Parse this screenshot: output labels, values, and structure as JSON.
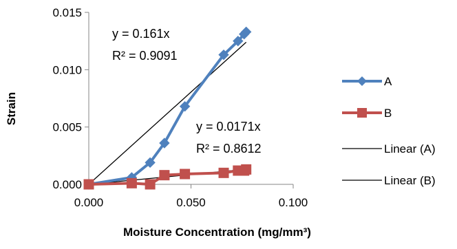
{
  "chart_data": {
    "type": "scatter",
    "xlabel": "Moisture Concentration (mg/mm³)",
    "ylabel": "Strain",
    "xlim": [
      0,
      0.1
    ],
    "ylim": [
      0,
      0.015
    ],
    "x_ticks": [
      "0.000",
      "0.050",
      "0.100"
    ],
    "y_ticks": [
      "0.000",
      "0.005",
      "0.010",
      "0.015"
    ],
    "x_tick_values": [
      0,
      0.05,
      0.1
    ],
    "y_tick_values": [
      0,
      0.005,
      0.01,
      0.015
    ],
    "grid": false,
    "legend_position": "right",
    "series": [
      {
        "name": "A",
        "color": "#4F81BD",
        "marker": "diamond",
        "x": [
          0.0,
          0.021,
          0.03,
          0.037,
          0.047,
          0.066,
          0.073,
          0.076,
          0.077
        ],
        "y": [
          0.0,
          0.0006,
          0.0019,
          0.0036,
          0.0068,
          0.0113,
          0.0125,
          0.0131,
          0.0133
        ]
      },
      {
        "name": "B",
        "color": "#C0504D",
        "marker": "square",
        "x": [
          0.0,
          0.021,
          0.03,
          0.037,
          0.047,
          0.066,
          0.073,
          0.076,
          0.077
        ],
        "y": [
          0.0,
          0.0001,
          0.0,
          0.0008,
          0.0009,
          0.001,
          0.0012,
          0.0012,
          0.0013
        ]
      }
    ],
    "trendlines": [
      {
        "name": "Linear (A)",
        "color": "#000000",
        "slope": 0.161,
        "x_range": [
          0,
          0.077
        ],
        "equation": "y = 0.161x",
        "r2": "R² = 0.9091"
      },
      {
        "name": "Linear (B)",
        "color": "#000000",
        "slope": 0.0171,
        "x_range": [
          0,
          0.077
        ],
        "equation": "y = 0.0171x",
        "r2": "R² = 0.8612"
      }
    ]
  }
}
